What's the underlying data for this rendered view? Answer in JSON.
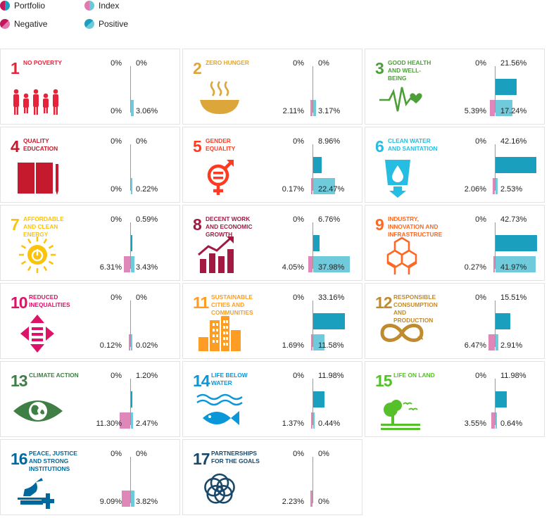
{
  "legend": {
    "row1": [
      {
        "label": "Portfolio",
        "color_left": "#c2185b",
        "color_right": "#1a9fbf"
      },
      {
        "label": "Index",
        "color_left": "#e07ab0",
        "color_right": "#6cc9da"
      }
    ],
    "row2": [
      {
        "label": "Negative",
        "color_left": "#c2185b",
        "color_right": "#e07ab0"
      },
      {
        "label": "Positive",
        "color_left": "#1a9fbf",
        "color_right": "#6cc9da"
      }
    ]
  },
  "colors": {
    "portfolio_positive": "#1b9fbf",
    "index_positive": "#6fcadb",
    "portfolio_negative": "#c8508f",
    "index_negative": "#de87b8",
    "axis": "#999999"
  },
  "chart_data": {
    "type": "bar",
    "title": "",
    "xlabel": "",
    "ylabel": "",
    "unit": "%",
    "series": [
      {
        "name": "Portfolio",
        "legend_keys": [
          "Negative",
          "Positive"
        ]
      },
      {
        "name": "Index",
        "legend_keys": [
          "Negative",
          "Positive"
        ]
      }
    ],
    "categories": [
      {
        "number": "1",
        "title": "NO POVERTY",
        "color": "#e5243b",
        "icon": "family-icon",
        "portfolio": {
          "negative": "0%",
          "positive": "0%",
          "neg": 0,
          "pos": 0
        },
        "index": {
          "negative": "0%",
          "positive": "3.06%",
          "neg": 0,
          "pos": 3.06
        }
      },
      {
        "number": "2",
        "title": "ZERO HUNGER",
        "color": "#dda63a",
        "icon": "bowl-icon",
        "portfolio": {
          "negative": "0%",
          "positive": "0%",
          "neg": 0,
          "pos": 0
        },
        "index": {
          "negative": "2.11%",
          "positive": "3.17%",
          "neg": 2.11,
          "pos": 3.17
        }
      },
      {
        "number": "3",
        "title": "GOOD HEALTH AND WELL-BEING",
        "color": "#4c9f38",
        "icon": "heartbeat-icon",
        "portfolio": {
          "negative": "0%",
          "positive": "21.56%",
          "neg": 0,
          "pos": 21.56
        },
        "index": {
          "negative": "5.39%",
          "positive": "17.24%",
          "neg": 5.39,
          "pos": 17.24
        }
      },
      {
        "number": "4",
        "title": "QUALITY EDUCATION",
        "color": "#c5192d",
        "icon": "book-icon",
        "portfolio": {
          "negative": "0%",
          "positive": "0%",
          "neg": 0,
          "pos": 0
        },
        "index": {
          "negative": "0%",
          "positive": "0.22%",
          "neg": 0,
          "pos": 0.22
        }
      },
      {
        "number": "5",
        "title": "GENDER EQUALITY",
        "color": "#ff3a21",
        "icon": "gender-equality-icon",
        "portfolio": {
          "negative": "0%",
          "positive": "8.96%",
          "neg": 0,
          "pos": 8.96
        },
        "index": {
          "negative": "0.17%",
          "positive": "22.47%",
          "neg": 0.17,
          "pos": 22.47
        }
      },
      {
        "number": "6",
        "title": "CLEAN WATER AND SANITATION",
        "color": "#26bde2",
        "icon": "water-glass-icon",
        "portfolio": {
          "negative": "0%",
          "positive": "42.16%",
          "neg": 0,
          "pos": 42.16
        },
        "index": {
          "negative": "2.06%",
          "positive": "2.53%",
          "neg": 2.06,
          "pos": 2.53
        }
      },
      {
        "number": "7",
        "title": "AFFORDABLE AND CLEAN ENERGY",
        "color": "#fcc30b",
        "icon": "sun-power-icon",
        "portfolio": {
          "negative": "0%",
          "positive": "0.59%",
          "neg": 0,
          "pos": 0.59
        },
        "index": {
          "negative": "6.31%",
          "positive": "3.43%",
          "neg": 6.31,
          "pos": 3.43
        }
      },
      {
        "number": "8",
        "title": "DECENT WORK AND ECONOMIC GROWTH",
        "color": "#a21942",
        "icon": "growth-chart-icon",
        "portfolio": {
          "negative": "0%",
          "positive": "6.76%",
          "neg": 0,
          "pos": 6.76
        },
        "index": {
          "negative": "4.05%",
          "positive": "37.98%",
          "neg": 4.05,
          "pos": 37.98
        }
      },
      {
        "number": "9",
        "title": "INDUSTRY, INNOVATION AND INFRASTRUCTURE",
        "color": "#fd6925",
        "icon": "cubes-icon",
        "portfolio": {
          "negative": "0%",
          "positive": "42.73%",
          "neg": 0,
          "pos": 42.73
        },
        "index": {
          "negative": "0.27%",
          "positive": "41.97%",
          "neg": 0.27,
          "pos": 41.97
        }
      },
      {
        "number": "10",
        "title": "REDUCED INEQUALITIES",
        "color": "#dd1367",
        "icon": "equality-arrows-icon",
        "portfolio": {
          "negative": "0%",
          "positive": "0%",
          "neg": 0,
          "pos": 0
        },
        "index": {
          "negative": "0.12%",
          "positive": "0.02%",
          "neg": 0.12,
          "pos": 0.02
        }
      },
      {
        "number": "11",
        "title": "SUSTAINABLE CITIES AND COMMUNITIES",
        "color": "#fd9d24",
        "icon": "city-icon",
        "portfolio": {
          "negative": "0%",
          "positive": "33.16%",
          "neg": 0,
          "pos": 33.16
        },
        "index": {
          "negative": "1.69%",
          "positive": "11.58%",
          "neg": 1.69,
          "pos": 11.58
        }
      },
      {
        "number": "12",
        "title": "RESPONSIBLE CONSUMPTION AND PRODUCTION",
        "color": "#bf8b2e",
        "icon": "infinity-icon",
        "portfolio": {
          "negative": "0%",
          "positive": "15.51%",
          "neg": 0,
          "pos": 15.51
        },
        "index": {
          "negative": "6.47%",
          "positive": "2.91%",
          "neg": 6.47,
          "pos": 2.91
        }
      },
      {
        "number": "13",
        "title": "CLIMATE ACTION",
        "color": "#3f7e44",
        "icon": "earth-eye-icon",
        "portfolio": {
          "negative": "0%",
          "positive": "1.20%",
          "neg": 0,
          "pos": 1.2
        },
        "index": {
          "negative": "11.30%",
          "positive": "2.47%",
          "neg": 11.3,
          "pos": 2.47
        }
      },
      {
        "number": "14",
        "title": "LIFE BELOW WATER",
        "color": "#0a97d9",
        "icon": "fish-icon",
        "portfolio": {
          "negative": "0%",
          "positive": "11.98%",
          "neg": 0,
          "pos": 11.98
        },
        "index": {
          "negative": "1.37%",
          "positive": "0.44%",
          "neg": 1.37,
          "pos": 0.44
        }
      },
      {
        "number": "15",
        "title": "LIFE ON LAND",
        "color": "#56c02b",
        "icon": "tree-birds-icon",
        "portfolio": {
          "negative": "0%",
          "positive": "11.98%",
          "neg": 0,
          "pos": 11.98
        },
        "index": {
          "negative": "3.55%",
          "positive": "0.64%",
          "neg": 3.55,
          "pos": 0.64
        }
      },
      {
        "number": "16",
        "title": "PEACE, JUSTICE AND STRONG INSTITUTIONS",
        "color": "#00689d",
        "icon": "dove-gavel-icon",
        "portfolio": {
          "negative": "0%",
          "positive": "0%",
          "neg": 0,
          "pos": 0
        },
        "index": {
          "negative": "9.09%",
          "positive": "3.82%",
          "neg": 9.09,
          "pos": 3.82
        }
      },
      {
        "number": "17",
        "title": "PARTNERSHIPS FOR THE GOALS",
        "color": "#19486a",
        "icon": "rings-icon",
        "portfolio": {
          "negative": "0%",
          "positive": "0%",
          "neg": 0,
          "pos": 0
        },
        "index": {
          "negative": "2.23%",
          "positive": "0%",
          "neg": 2.23,
          "pos": 0
        }
      }
    ]
  }
}
